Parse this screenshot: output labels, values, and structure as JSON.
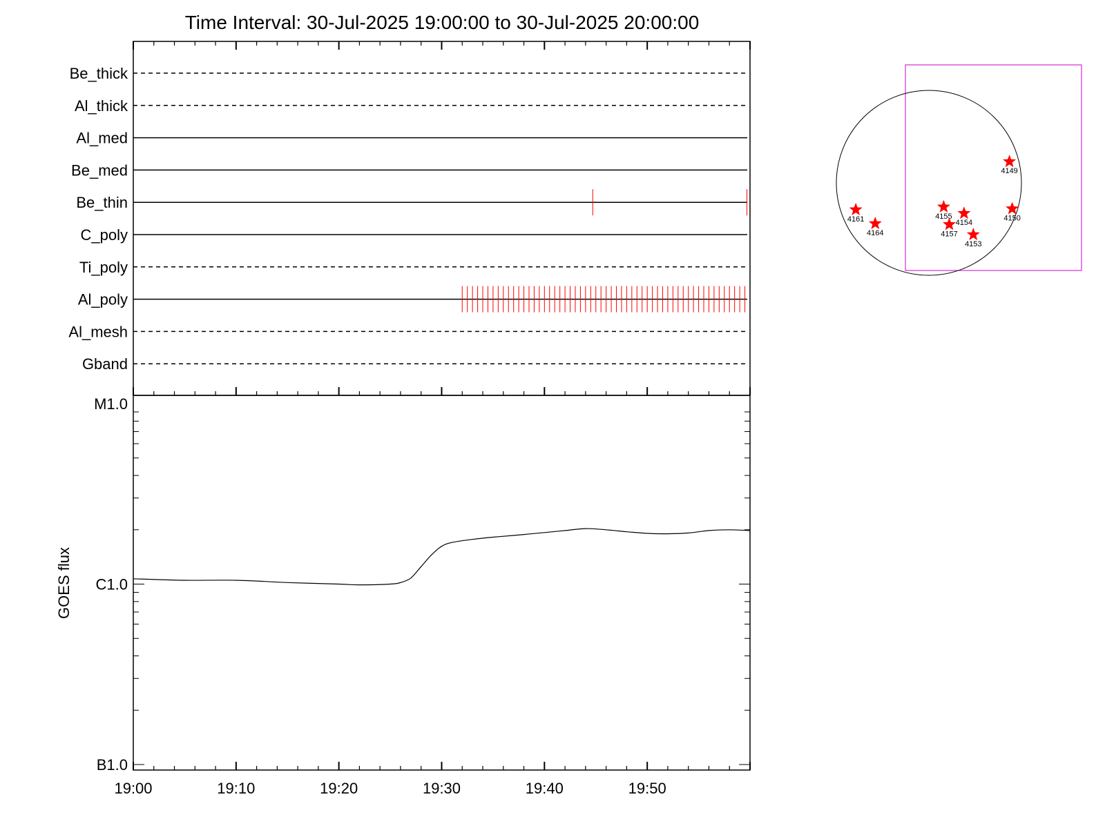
{
  "title": "Time Interval: 30-Jul-2025 19:00:00 to 30-Jul-2025 20:00:00",
  "colors": {
    "axis": "#000000",
    "event": "#ff0000",
    "fov_box": "#cc00cc",
    "ar_star": "#ff0000"
  },
  "chart_data": [
    {
      "type": "line",
      "name": "filter-timeline",
      "x_range": [
        "19:00",
        "20:00"
      ],
      "filters": [
        {
          "label": "Be_thick",
          "style": "dashed",
          "events": []
        },
        {
          "label": "Al_thick",
          "style": "dashed",
          "events": []
        },
        {
          "label": "Al_med",
          "style": "solid",
          "events": []
        },
        {
          "label": "Be_med",
          "style": "solid",
          "events": []
        },
        {
          "label": "Be_thin",
          "style": "solid",
          "events": [
            44.7,
            59.7
          ]
        },
        {
          "label": "C_poly",
          "style": "solid",
          "events": []
        },
        {
          "label": "Ti_poly",
          "style": "dashed",
          "events": []
        },
        {
          "label": "Al_poly",
          "style": "solid",
          "events_every_min": 0.5,
          "events_start": 32.0,
          "events_end": 59.9
        },
        {
          "label": "Al_mesh",
          "style": "dashed",
          "events": []
        },
        {
          "label": "Gband",
          "style": "dashed",
          "events": []
        }
      ]
    },
    {
      "type": "line",
      "name": "goes-flux",
      "ylabel": "GOES flux",
      "yscale": "log",
      "yticks": [
        "B1.0",
        "C1.0",
        "M1.0"
      ],
      "ylim": [
        1e-07,
        1e-05
      ],
      "xticks": [
        "19:00",
        "19:10",
        "19:20",
        "19:30",
        "19:40",
        "19:50"
      ],
      "x_range_minutes": [
        0,
        60
      ],
      "x": [
        0,
        5,
        10,
        15,
        20,
        22,
        25,
        26,
        27,
        28,
        29,
        30,
        31,
        33,
        35,
        37,
        40,
        42,
        44,
        46,
        48,
        50,
        52,
        54,
        56,
        58,
        60
      ],
      "y": [
        1.07e-06,
        1.05e-06,
        1.05e-06,
        1.02e-06,
        1e-06,
        9.9e-07,
        1e-06,
        1.02e-06,
        1.08e-06,
        1.25e-06,
        1.45e-06,
        1.62e-06,
        1.7e-06,
        1.77e-06,
        1.82e-06,
        1.86e-06,
        1.93e-06,
        1.98e-06,
        2.03e-06,
        2e-06,
        1.95e-06,
        1.91e-06,
        1.9e-06,
        1.92e-06,
        1.98e-06,
        2e-06,
        1.98e-06
      ]
    }
  ],
  "sun_map": {
    "active_regions": [
      {
        "label": "4149",
        "dx": 0.87,
        "dy": -0.23
      },
      {
        "label": "4150",
        "dx": 0.9,
        "dy": 0.28
      },
      {
        "label": "4155",
        "dx": 0.16,
        "dy": 0.26
      },
      {
        "label": "4154",
        "dx": 0.38,
        "dy": 0.33
      },
      {
        "label": "4157",
        "dx": 0.22,
        "dy": 0.45
      },
      {
        "label": "4153",
        "dx": 0.48,
        "dy": 0.56
      },
      {
        "label": "4161",
        "dx": -0.79,
        "dy": 0.29
      },
      {
        "label": "4164",
        "dx": -0.58,
        "dy": 0.44
      }
    ]
  }
}
